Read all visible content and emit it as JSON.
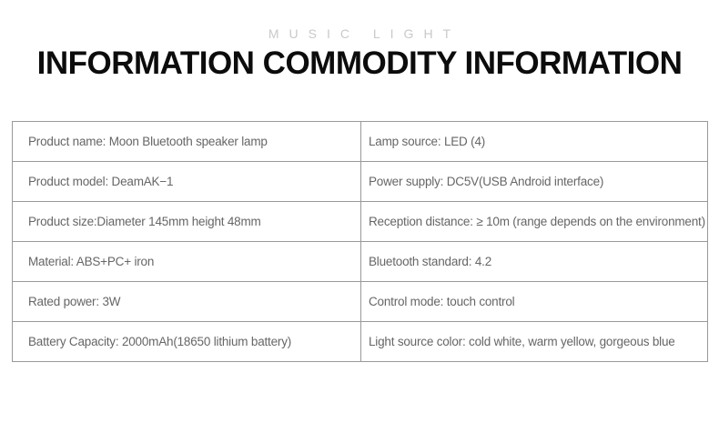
{
  "header": {
    "tagline": "MUSIC LIGHT",
    "title": "INFORMATION COMMODITY INFORMATION"
  },
  "colors": {
    "border": "#999999",
    "cell_text": "#666666",
    "title_text": "#0c0c0c",
    "tagline_text": "#c9c9c9"
  },
  "table": {
    "rows": [
      {
        "left": "Product name: Moon Bluetooth speaker lamp",
        "right": "Lamp source: LED (4)"
      },
      {
        "left": "Product model: DeamAK−1",
        "right": "Power supply: DC5V(USB Android interface)"
      },
      {
        "left": "Product size:Diameter 145mm height 48mm",
        "right": "Reception distance: ≥ 10m (range depends on the environment)"
      },
      {
        "left": "Material: ABS+PC+ iron",
        "right": "Bluetooth standard: 4.2"
      },
      {
        "left": "Rated power: 3W",
        "right": "Control mode: touch control"
      },
      {
        "left": "Battery Capacity: 2000mAh(18650 lithium battery)",
        "right": "Light source color: cold white, warm yellow, gorgeous blue"
      }
    ]
  }
}
